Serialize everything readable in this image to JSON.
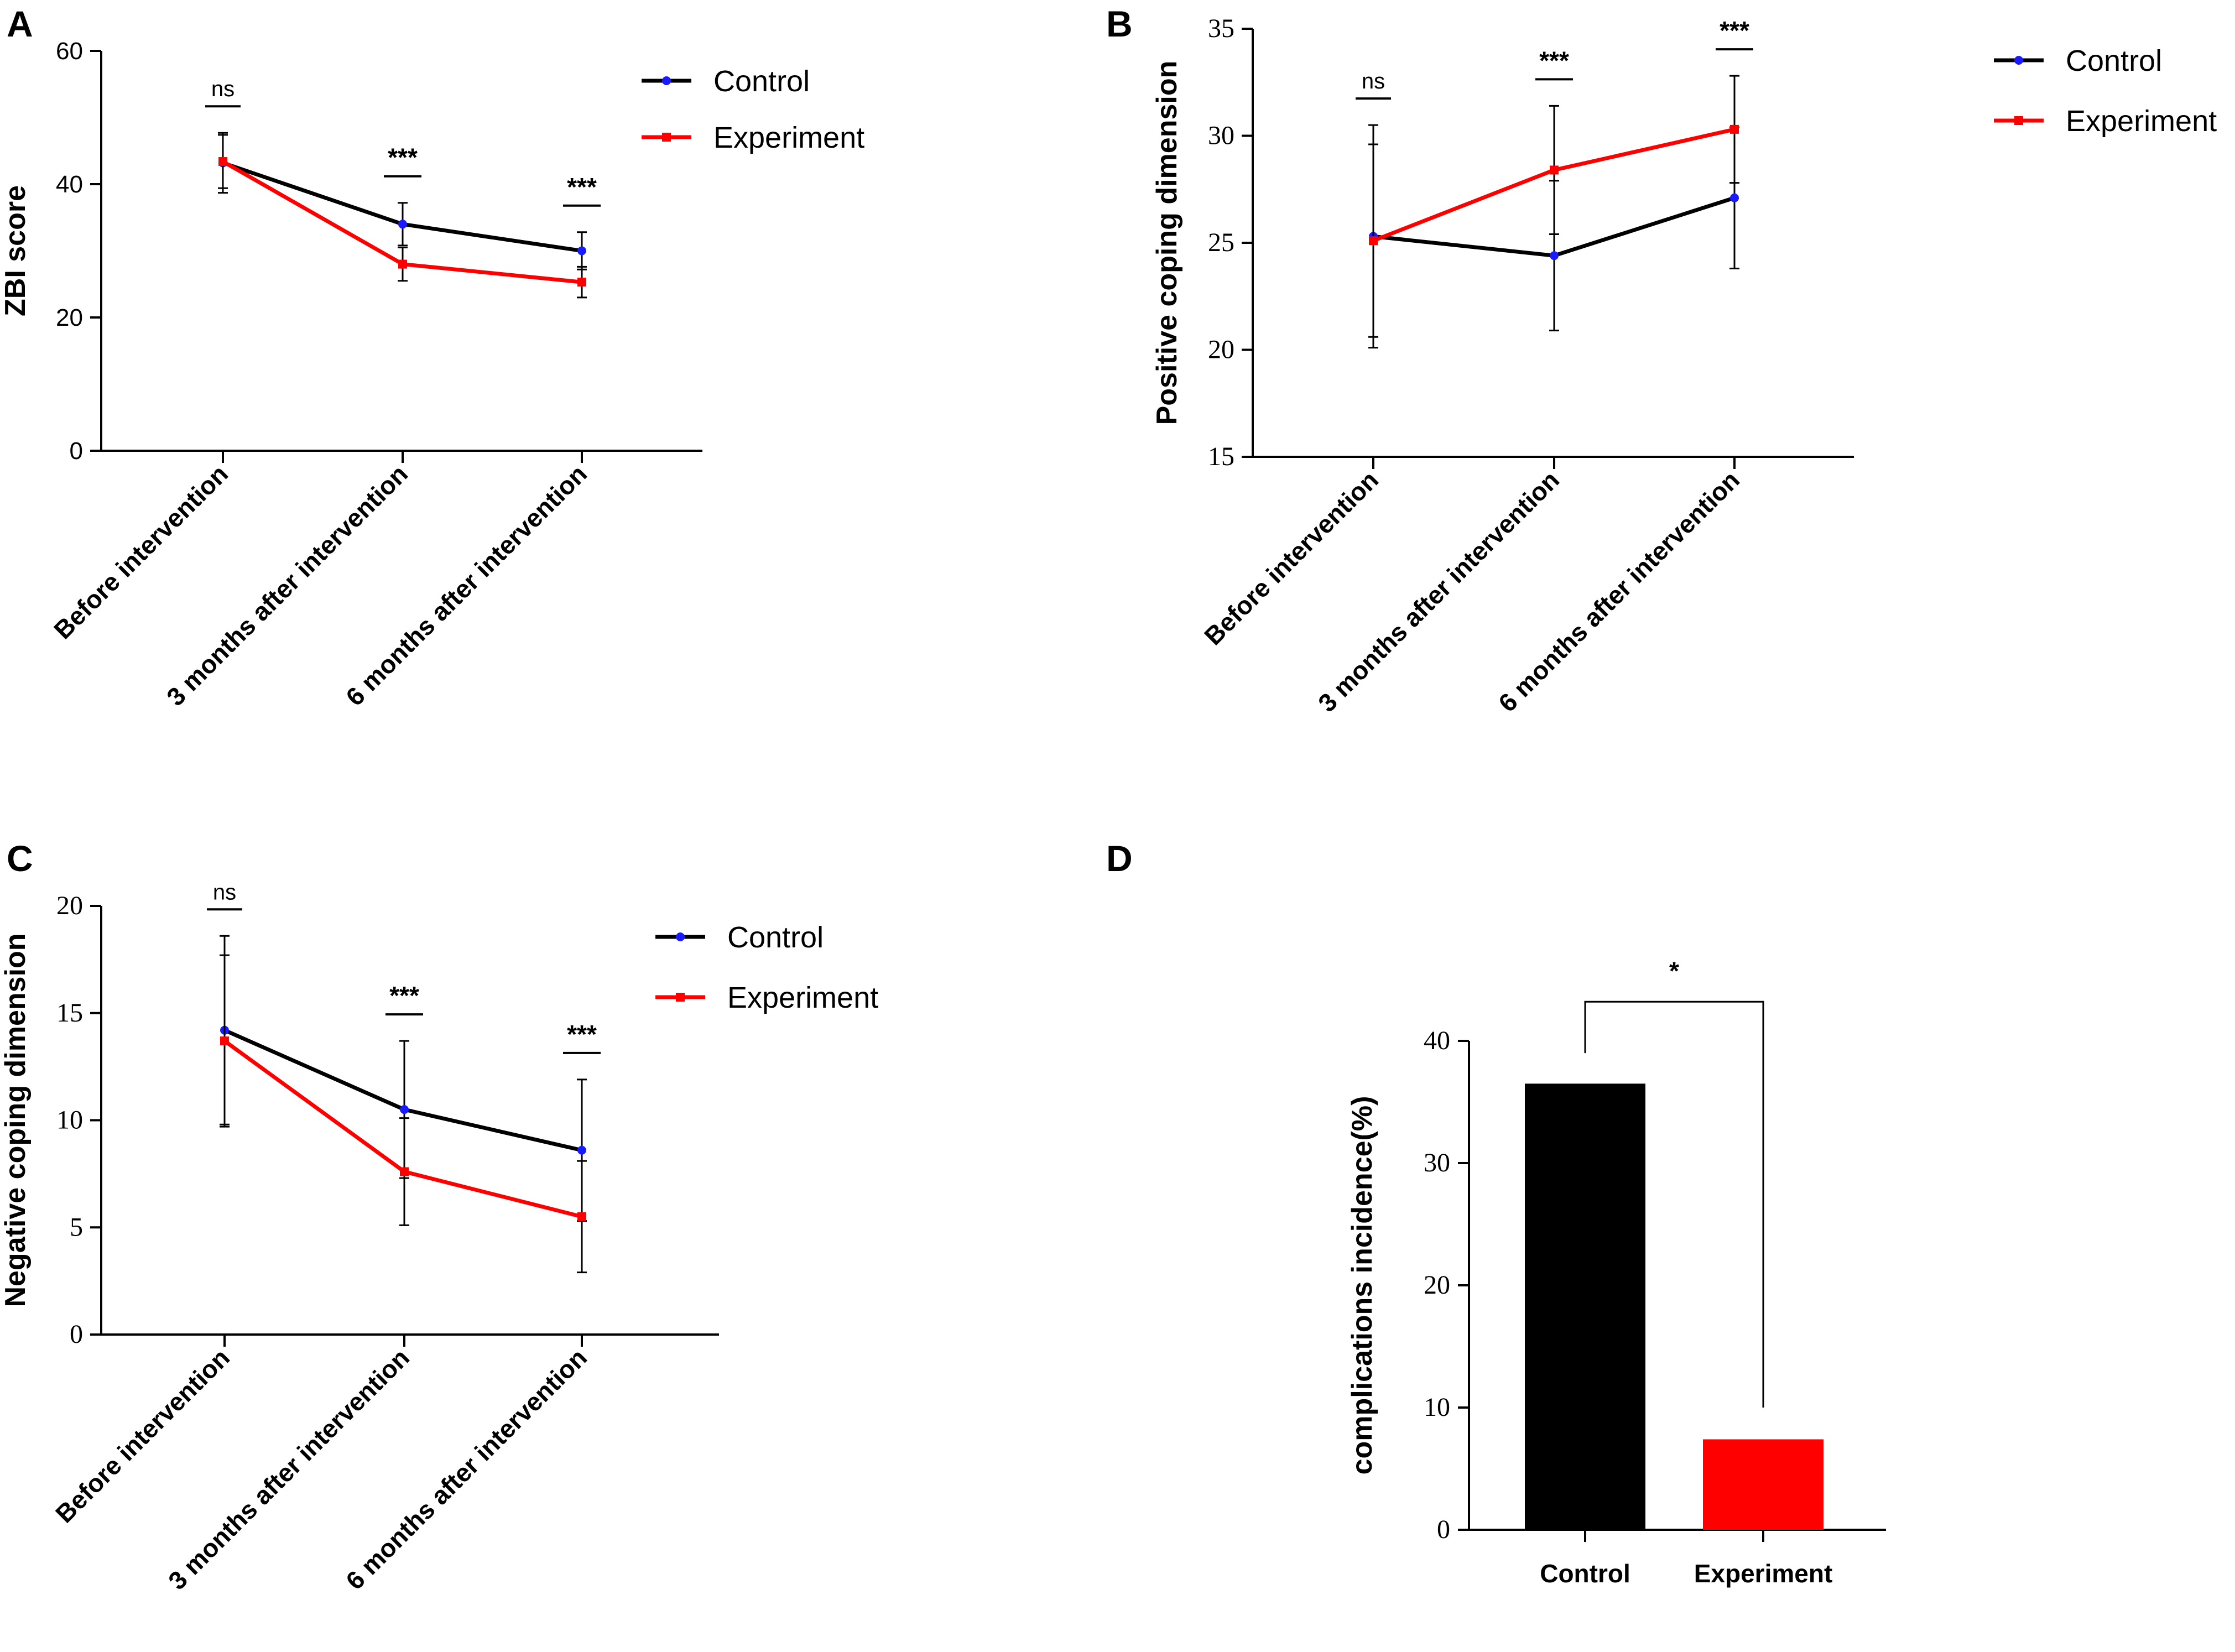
{
  "figure": {
    "panels": [
      "A",
      "B",
      "C",
      "D"
    ],
    "colors": {
      "control": "#000000",
      "experiment": "#ff0000",
      "marker_control": "#1a1aff",
      "axis": "#000000"
    }
  },
  "chart_data": [
    {
      "panel": "A",
      "type": "line",
      "categories": [
        "Before intervention",
        "3 months after intervention",
        "6 months after intervention"
      ],
      "ylabel": "ZBI score",
      "xlabel": "",
      "ylim": [
        0,
        60
      ],
      "yticks": [
        0,
        20,
        40,
        60
      ],
      "series": [
        {
          "name": "Control",
          "values": [
            43.2,
            34.0,
            30.0
          ],
          "error": [
            4.5,
            3.2,
            2.8
          ]
        },
        {
          "name": "Experiment",
          "values": [
            43.4,
            28.0,
            25.3
          ],
          "error": [
            4.0,
            2.5,
            2.3
          ]
        }
      ],
      "significance": [
        "ns",
        "***",
        "***"
      ],
      "legend": "top-right"
    },
    {
      "panel": "B",
      "type": "line",
      "categories": [
        "Before intervention",
        "3 months after intervention",
        "6 months after intervention"
      ],
      "ylabel": "Positive coping dimension",
      "xlabel": "",
      "ylim": [
        15,
        35
      ],
      "yticks": [
        15,
        20,
        25,
        30,
        35
      ],
      "series": [
        {
          "name": "Control",
          "values": [
            25.3,
            24.4,
            27.1
          ],
          "error": [
            5.2,
            3.5,
            3.3
          ]
        },
        {
          "name": "Experiment",
          "values": [
            25.1,
            28.4,
            30.3
          ],
          "error": [
            4.5,
            3.0,
            2.5
          ]
        }
      ],
      "significance": [
        "ns",
        "***",
        "***"
      ],
      "legend": "top-right"
    },
    {
      "panel": "C",
      "type": "line",
      "categories": [
        "Before intervention",
        "3 months after intervention",
        "6 months after intervention"
      ],
      "ylabel": "Negative coping dimension",
      "xlabel": "",
      "ylim": [
        0,
        20
      ],
      "yticks": [
        0,
        5,
        10,
        15,
        20
      ],
      "series": [
        {
          "name": "Control",
          "values": [
            14.2,
            10.5,
            8.6
          ],
          "error": [
            4.4,
            3.2,
            3.3
          ]
        },
        {
          "name": "Experiment",
          "values": [
            13.7,
            7.6,
            5.5
          ],
          "error": [
            4.0,
            2.5,
            2.6
          ]
        }
      ],
      "significance": [
        "ns",
        "***",
        "***"
      ],
      "legend": "top-right"
    },
    {
      "panel": "D",
      "type": "bar",
      "categories": [
        "Control",
        "Experiment"
      ],
      "values": [
        36.5,
        7.4
      ],
      "ylabel": "complications incidence(%)",
      "xlabel": "",
      "ylim": [
        0,
        40
      ],
      "yticks": [
        0,
        10,
        20,
        30,
        40
      ],
      "significance": "*"
    }
  ]
}
